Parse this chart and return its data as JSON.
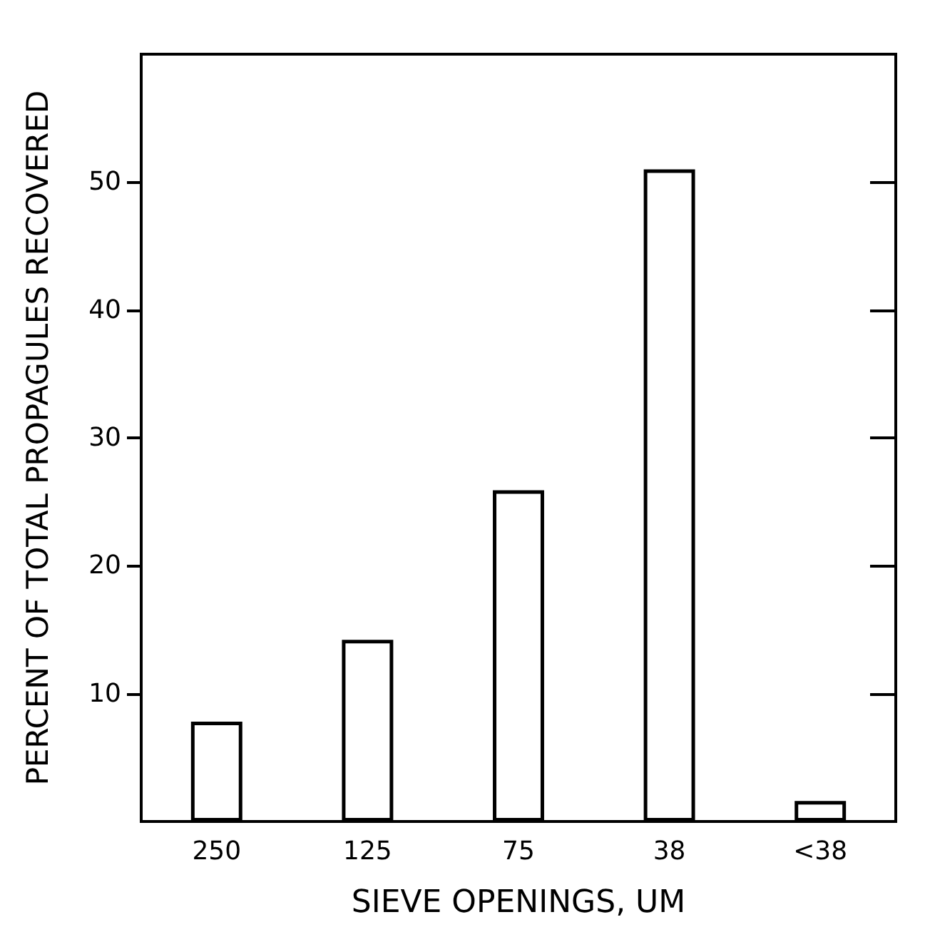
{
  "chart_data": {
    "type": "bar",
    "xlabel": "SIEVE OPENINGS, UM",
    "ylabel": "PERCENT OF TOTAL PROPAGULES RECOVERED",
    "categories": [
      "250",
      "125",
      "75",
      "38",
      "<38"
    ],
    "values": [
      7.8,
      14.2,
      25.9,
      51,
      1.6
    ],
    "color": "#ffffff",
    "ylim": [
      0,
      60
    ],
    "yticks": [
      10,
      20,
      30,
      40,
      50
    ],
    "grid": false
  }
}
